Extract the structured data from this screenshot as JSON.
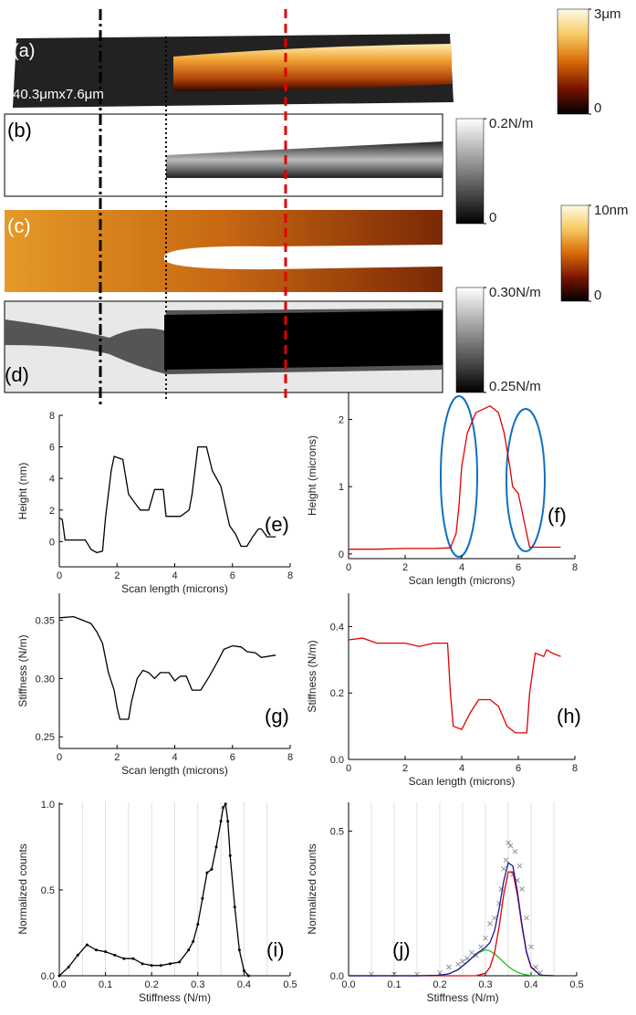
{
  "images": [
    {
      "label": "(a)",
      "caption": "40.3μmx7.6μm"
    },
    {
      "label": "(b)"
    },
    {
      "label": "(c)"
    },
    {
      "label": "(d)"
    }
  ],
  "colorbars": [
    {
      "range": [
        0,
        3
      ],
      "ticks": [
        {
          "value": 3,
          "label": "3μm"
        },
        0
      ],
      "colors": [
        "#000000",
        "#7a1500",
        "#d86a08",
        "#f7c860",
        "#fffbe8"
      ]
    },
    {
      "range": [
        0,
        0.2
      ],
      "ticks": [
        {
          "value": 0.2,
          "label": "0.2N/m"
        },
        0
      ],
      "colors": [
        "#000000",
        "#808080",
        "#ffffff"
      ]
    },
    {
      "range": [
        0,
        10
      ],
      "ticks": [
        {
          "value": 10,
          "label": "10nm"
        },
        0
      ],
      "colors": [
        "#000000",
        "#7a1500",
        "#d86a08",
        "#f7c860",
        "#fffbe8"
      ]
    },
    {
      "range": [
        0.25,
        0.3
      ],
      "ticks": [
        {
          "value": 0.3,
          "label": "0.30N/m"
        },
        {
          "value": 0.25,
          "label": "0.25N/m"
        }
      ],
      "colors": [
        "#000000",
        "#808080",
        "#ffffff"
      ]
    }
  ],
  "chart_data": [
    {
      "type": "line",
      "annotation": "(e)",
      "xlabel": "Scan length (microns)",
      "ylabel": "Height (nm)",
      "xlim": [
        0,
        8
      ],
      "ylim": [
        -1.6,
        8
      ],
      "xticks": [
        0,
        2,
        4,
        6,
        8
      ],
      "yticks": [
        0,
        2,
        4,
        6,
        8
      ],
      "series": [
        {
          "color": "#000000",
          "x": [
            0,
            0.1,
            0.2,
            0.5,
            0.9,
            1.1,
            1.3,
            1.5,
            1.6,
            1.8,
            1.9,
            2.2,
            2.4,
            2.6,
            2.8,
            3.1,
            3.3,
            3.6,
            3.7,
            3.9,
            4.2,
            4.5,
            4.6,
            4.8,
            5.1,
            5.3,
            5.6,
            5.9,
            6.1,
            6.3,
            6.5,
            6.7,
            6.9,
            7.0,
            7.2,
            7.5
          ],
          "values": [
            1.5,
            1.4,
            0.1,
            0.1,
            0.1,
            -0.5,
            -0.7,
            -0.6,
            1.5,
            4.5,
            5.4,
            5.2,
            3,
            2.5,
            2,
            2,
            3.3,
            3.3,
            1.6,
            1.6,
            1.6,
            2,
            3,
            6,
            6,
            4.5,
            3.5,
            1,
            0.5,
            -0.3,
            -0.3,
            0.3,
            0.8,
            0.8,
            0.3,
            0.3
          ]
        }
      ]
    },
    {
      "type": "line",
      "annotation": "(f)",
      "xlabel": "Scan length (microns)",
      "ylabel": "Height (microns)",
      "xlim": [
        0,
        8
      ],
      "ylim": [
        -0.07,
        2.4
      ],
      "xticks": [
        0,
        2,
        4,
        6,
        8
      ],
      "yticks": [
        0,
        1,
        2
      ],
      "series": [
        {
          "color": "#e00000",
          "x": [
            0,
            1,
            2,
            3,
            3.6,
            3.8,
            3.9,
            4.0,
            4.2,
            4.5,
            5.0,
            5.3,
            5.5,
            5.7,
            5.8,
            6.0,
            6.2,
            6.4,
            7,
            7.5
          ],
          "values": [
            0.07,
            0.07,
            0.08,
            0.08,
            0.09,
            0.3,
            0.7,
            1.3,
            1.8,
            2.1,
            2.2,
            2.1,
            1.8,
            1.3,
            1.0,
            0.9,
            0.5,
            0.1,
            0.1,
            0.1
          ]
        }
      ]
    },
    {
      "type": "line",
      "annotation": "(g)",
      "xlabel": "Scan length (microns)",
      "ylabel": "Stiffness (N/m)",
      "xlim": [
        0,
        8
      ],
      "ylim": [
        0.24,
        0.373
      ],
      "xticks": [
        0,
        2,
        4,
        6,
        8
      ],
      "yticks": [
        0.25,
        {
          "value": 0.3,
          "label": "0.30"
        },
        0.35
      ],
      "series": [
        {
          "color": "#000000",
          "x": [
            0,
            0.5,
            0.8,
            1.1,
            1.3,
            1.5,
            1.7,
            1.9,
            2.0,
            2.1,
            2.4,
            2.5,
            2.7,
            2.9,
            3.1,
            3.3,
            3.5,
            3.8,
            4.0,
            4.2,
            4.4,
            4.6,
            4.9,
            5.2,
            5.5,
            5.7,
            6.0,
            6.3,
            6.5,
            6.8,
            7.0,
            7.5
          ],
          "values": [
            0.352,
            0.353,
            0.35,
            0.347,
            0.34,
            0.33,
            0.305,
            0.29,
            0.275,
            0.265,
            0.265,
            0.28,
            0.3,
            0.307,
            0.305,
            0.3,
            0.305,
            0.305,
            0.298,
            0.302,
            0.302,
            0.29,
            0.29,
            0.302,
            0.315,
            0.325,
            0.328,
            0.327,
            0.323,
            0.322,
            0.318,
            0.32
          ]
        }
      ]
    },
    {
      "type": "line",
      "annotation": "(h)",
      "xlabel": "Scan length (microns)",
      "ylabel": "Stiffness (N/m)",
      "xlim": [
        0,
        8
      ],
      "ylim": [
        0,
        0.5
      ],
      "xticks": [
        0,
        2,
        4,
        6,
        8
      ],
      "yticks": [
        {
          "value": 0,
          "label": "0.0"
        },
        0.2,
        0.4
      ],
      "series": [
        {
          "color": "#e00000",
          "x": [
            0,
            0.5,
            1,
            1.5,
            2.0,
            2.5,
            3.0,
            3.5,
            3.6,
            3.7,
            4.0,
            4.3,
            4.6,
            5.0,
            5.3,
            5.6,
            5.9,
            6.3,
            6.4,
            6.6,
            6.9,
            7.0,
            7.2,
            7.5
          ],
          "values": [
            0.36,
            0.365,
            0.35,
            0.35,
            0.35,
            0.34,
            0.35,
            0.35,
            0.2,
            0.1,
            0.09,
            0.14,
            0.18,
            0.18,
            0.16,
            0.1,
            0.08,
            0.08,
            0.2,
            0.32,
            0.31,
            0.33,
            0.32,
            0.31
          ]
        }
      ]
    },
    {
      "type": "line",
      "annotation": "(i)",
      "xlabel": "Stiffness (N/m)",
      "ylabel": "Normalized counts",
      "xlim": [
        0,
        0.5
      ],
      "ylim": [
        0,
        1.01
      ],
      "xticks": [
        {
          "value": 0,
          "label": "0.0"
        },
        0.1,
        0.2,
        0.3,
        0.4,
        0.5
      ],
      "yticks": [
        {
          "value": 0,
          "label": "0.0"
        },
        0.5,
        {
          "value": 1,
          "label": "1.0"
        }
      ],
      "xgrid": [
        0.05,
        0.1,
        0.15,
        0.2,
        0.25,
        0.3,
        0.35,
        0.4,
        0.45
      ],
      "series": [
        {
          "color": "#000000",
          "markers": true,
          "x": [
            0,
            0.02,
            0.04,
            0.06,
            0.08,
            0.1,
            0.12,
            0.14,
            0.16,
            0.18,
            0.2,
            0.22,
            0.24,
            0.26,
            0.28,
            0.29,
            0.3,
            0.31,
            0.32,
            0.33,
            0.34,
            0.35,
            0.355,
            0.36,
            0.365,
            0.37,
            0.38,
            0.39,
            0.4,
            0.41
          ],
          "values": [
            0,
            0.05,
            0.12,
            0.18,
            0.15,
            0.14,
            0.12,
            0.1,
            0.1,
            0.07,
            0.06,
            0.06,
            0.07,
            0.08,
            0.15,
            0.2,
            0.3,
            0.45,
            0.6,
            0.62,
            0.75,
            0.9,
            0.98,
            1.0,
            0.9,
            0.7,
            0.4,
            0.15,
            0.03,
            0
          ]
        }
      ]
    },
    {
      "type": "line",
      "annotation": "(j)",
      "xlabel": "Stiffness (N/m)",
      "ylabel": "Normalized counts",
      "xlim": [
        0,
        0.5
      ],
      "ylim": [
        0,
        0.6
      ],
      "xticks": [
        {
          "value": 0,
          "label": "0.0"
        },
        0.1,
        0.2,
        0.3,
        0.4,
        0.5
      ],
      "yticks": [
        {
          "value": 0,
          "label": "0.0"
        },
        0.5
      ],
      "xgrid": [
        0.05,
        0.1,
        0.15,
        0.2,
        0.25,
        0.3,
        0.35,
        0.4,
        0.45
      ],
      "series": [
        {
          "type": "scatter",
          "color": "#909090",
          "x": [
            0.05,
            0.1,
            0.15,
            0.2,
            0.22,
            0.24,
            0.25,
            0.26,
            0.27,
            0.28,
            0.29,
            0.3,
            0.31,
            0.32,
            0.33,
            0.335,
            0.34,
            0.345,
            0.35,
            0.355,
            0.36,
            0.365,
            0.37,
            0.375,
            0.38,
            0.39,
            0.4,
            0.41,
            0.42
          ],
          "values": [
            0.005,
            0.005,
            0.005,
            0.01,
            0.03,
            0.04,
            0.05,
            0.06,
            0.08,
            0.07,
            0.1,
            0.13,
            0.18,
            0.2,
            0.25,
            0.3,
            0.37,
            0.4,
            0.46,
            0.45,
            0.35,
            0.43,
            0.33,
            0.38,
            0.3,
            0.2,
            0.1,
            0.03,
            0.01
          ]
        },
        {
          "color": "#20c020",
          "x": [
            0,
            0.05,
            0.1,
            0.15,
            0.2,
            0.22,
            0.24,
            0.26,
            0.28,
            0.3,
            0.31,
            0.32,
            0.33,
            0.34,
            0.35,
            0.36,
            0.37,
            0.38,
            0.39,
            0.4,
            0.42,
            0.45
          ],
          "values": [
            0,
            0,
            0,
            0,
            0.0015,
            0.0066,
            0.021,
            0.047,
            0.076,
            0.09,
            0.086,
            0.076,
            0.062,
            0.047,
            0.032,
            0.021,
            0.012,
            0.0066,
            0.0033,
            0.0015,
            0,
            0
          ]
        },
        {
          "color": "#e00000",
          "x": [
            0,
            0.05,
            0.1,
            0.15,
            0.2,
            0.22,
            0.24,
            0.26,
            0.28,
            0.3,
            0.31,
            0.32,
            0.33,
            0.34,
            0.35,
            0.36,
            0.37,
            0.38,
            0.39,
            0.4,
            0.42,
            0.45
          ],
          "values": [
            0,
            0,
            0,
            0,
            0,
            0,
            0,
            0,
            0.0003,
            0.0084,
            0.029,
            0.08,
            0.17,
            0.28,
            0.359,
            0.359,
            0.28,
            0.17,
            0.08,
            0.029,
            0.0019,
            0
          ]
        },
        {
          "color": "#1a1aa0",
          "x": [
            0,
            0.05,
            0.1,
            0.15,
            0.2,
            0.22,
            0.24,
            0.26,
            0.28,
            0.3,
            0.31,
            0.32,
            0.33,
            0.34,
            0.35,
            0.36,
            0.37,
            0.38,
            0.39,
            0.4,
            0.42,
            0.45
          ],
          "values": [
            0,
            0,
            0,
            0,
            0.0015,
            0.0066,
            0.021,
            0.047,
            0.076,
            0.098,
            0.115,
            0.156,
            0.232,
            0.327,
            0.391,
            0.38,
            0.292,
            0.177,
            0.083,
            0.031,
            0.002,
            0
          ]
        }
      ]
    }
  ]
}
